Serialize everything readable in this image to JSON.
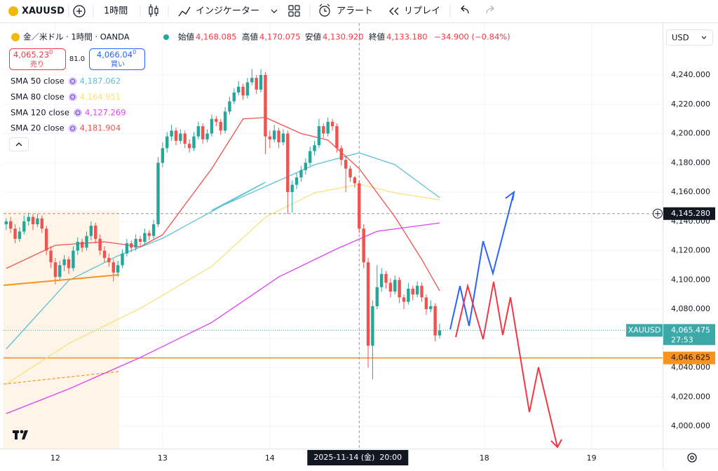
{
  "toolbar": {
    "symbol": "XAUUSD",
    "interval": "1時間",
    "indicators": "インジケーター",
    "alert": "アラート",
    "replay": "リプレイ"
  },
  "chart_data": {
    "type": "candlestick",
    "title": "金／米ドル · 1時間 · OANDA",
    "currency": "USD",
    "ohlc_legend": [
      {
        "label": "始値",
        "value": "4,168.085"
      },
      {
        "label": "高値",
        "value": "4,170.075"
      },
      {
        "label": "安値",
        "value": "4,130.920"
      },
      {
        "label": "終値",
        "value": "4,133.180"
      }
    ],
    "change": "−34.900 (−0.84%)",
    "quote": {
      "sell": "4,065.23",
      "sell_sup": "0",
      "sell_label": "売り",
      "spread": "81.0",
      "buy": "4,066.04",
      "buy_sup": "0",
      "buy_label": "買い"
    },
    "up_color": "#26a69a",
    "down_color": "#ef5350",
    "candles": {
      "x": [
        -11,
        -10,
        -9,
        -8,
        -7,
        -6,
        -5,
        -4,
        -3,
        -2,
        -1,
        0,
        1,
        2,
        3,
        4,
        5,
        6,
        7,
        8,
        9,
        10,
        11,
        12,
        13,
        14,
        15,
        16,
        17,
        18,
        19,
        20,
        21,
        22,
        23,
        24,
        25,
        26,
        27,
        28,
        29,
        30,
        31,
        32,
        33,
        34,
        35,
        36,
        37,
        38,
        39,
        40,
        41,
        42,
        43,
        44,
        45,
        46,
        47,
        48,
        49,
        50,
        51,
        52,
        53,
        54,
        55,
        56,
        57,
        58,
        59,
        60,
        61,
        62,
        63,
        64,
        65,
        66,
        67,
        68,
        69,
        70,
        71,
        72,
        73,
        74,
        75,
        76,
        77,
        78,
        79,
        80,
        81,
        82,
        83,
        84,
        85,
        86
      ],
      "ohlc": [
        [
          4138,
          4142,
          4134,
          4140
        ],
        [
          4140,
          4143,
          4132,
          4135
        ],
        [
          4135,
          4138,
          4125,
          4128
        ],
        [
          4128,
          4136,
          4126,
          4133
        ],
        [
          4133,
          4144,
          4131,
          4140
        ],
        [
          4140,
          4146,
          4137,
          4143
        ],
        [
          4143,
          4145,
          4134,
          4138
        ],
        [
          4138,
          4145,
          4136,
          4142
        ],
        [
          4142,
          4144,
          4132,
          4135
        ],
        [
          4135,
          4137,
          4117,
          4120
        ],
        [
          4120,
          4123,
          4108,
          4112
        ],
        [
          4112,
          4115,
          4097,
          4102
        ],
        [
          4102,
          4113,
          4100,
          4110
        ],
        [
          4110,
          4117,
          4106,
          4114
        ],
        [
          4114,
          4116,
          4104,
          4108
        ],
        [
          4108,
          4123,
          4106,
          4120
        ],
        [
          4120,
          4129,
          4117,
          4126
        ],
        [
          4126,
          4128,
          4119,
          4122
        ],
        [
          4122,
          4133,
          4120,
          4130
        ],
        [
          4130,
          4140,
          4127,
          4137
        ],
        [
          4137,
          4139,
          4125,
          4128
        ],
        [
          4128,
          4131,
          4117,
          4120
        ],
        [
          4120,
          4123,
          4112,
          4115
        ],
        [
          4115,
          4118,
          4109,
          4112
        ],
        [
          4112,
          4114,
          4099,
          4105
        ],
        [
          4105,
          4113,
          4102,
          4110
        ],
        [
          4110,
          4121,
          4108,
          4118
        ],
        [
          4118,
          4128,
          4116,
          4125
        ],
        [
          4125,
          4127,
          4119,
          4122
        ],
        [
          4122,
          4131,
          4120,
          4128
        ],
        [
          4128,
          4130,
          4123,
          4126
        ],
        [
          4126,
          4135,
          4124,
          4132
        ],
        [
          4132,
          4134,
          4127,
          4130
        ],
        [
          4130,
          4141,
          4128,
          4138
        ],
        [
          4138,
          4184,
          4136,
          4180
        ],
        [
          4180,
          4194,
          4177,
          4190
        ],
        [
          4190,
          4201,
          4187,
          4198
        ],
        [
          4198,
          4206,
          4195,
          4202
        ],
        [
          4202,
          4204,
          4192,
          4195
        ],
        [
          4195,
          4203,
          4193,
          4200
        ],
        [
          4200,
          4202,
          4190,
          4193
        ],
        [
          4193,
          4196,
          4187,
          4190
        ],
        [
          4190,
          4201,
          4188,
          4198
        ],
        [
          4198,
          4208,
          4196,
          4205
        ],
        [
          4205,
          4207,
          4193,
          4196
        ],
        [
          4196,
          4203,
          4194,
          4200
        ],
        [
          4200,
          4213,
          4198,
          4210
        ],
        [
          4210,
          4212,
          4205,
          4208
        ],
        [
          4208,
          4210,
          4199,
          4202
        ],
        [
          4202,
          4218,
          4200,
          4215
        ],
        [
          4215,
          4225,
          4213,
          4222
        ],
        [
          4222,
          4231,
          4220,
          4228
        ],
        [
          4228,
          4236,
          4226,
          4232
        ],
        [
          4232,
          4234,
          4223,
          4226
        ],
        [
          4226,
          4238,
          4224,
          4235
        ],
        [
          4235,
          4244,
          4233,
          4238
        ],
        [
          4238,
          4240,
          4227,
          4230
        ],
        [
          4230,
          4244,
          4228,
          4240
        ],
        [
          4240,
          4242,
          4186,
          4198
        ],
        [
          4198,
          4202,
          4190,
          4196
        ],
        [
          4196,
          4206,
          4194,
          4202
        ],
        [
          4202,
          4204,
          4190,
          4194
        ],
        [
          4194,
          4203,
          4192,
          4200
        ],
        [
          4200,
          4202,
          4145,
          4160
        ],
        [
          4160,
          4168,
          4146,
          4165
        ],
        [
          4165,
          4173,
          4162,
          4170
        ],
        [
          4170,
          4178,
          4167,
          4175
        ],
        [
          4175,
          4183,
          4172,
          4180
        ],
        [
          4180,
          4191,
          4178,
          4188
        ],
        [
          4188,
          4195,
          4185,
          4192
        ],
        [
          4192,
          4210,
          4190,
          4205
        ],
        [
          4205,
          4207,
          4197,
          4200
        ],
        [
          4200,
          4211,
          4198,
          4208
        ],
        [
          4208,
          4210,
          4202,
          4205
        ],
        [
          4205,
          4207,
          4187,
          4190
        ],
        [
          4190,
          4192,
          4178,
          4182
        ],
        [
          4182,
          4185,
          4160,
          4176
        ],
        [
          4176,
          4178,
          4167,
          4170
        ],
        [
          4170,
          4171,
          4163,
          4166
        ],
        [
          4166,
          4168,
          4132,
          4135
        ],
        [
          4135,
          4138,
          4108,
          4112
        ],
        [
          4112,
          4115,
          4040,
          4055
        ],
        [
          4055,
          4086,
          4032,
          4082
        ],
        [
          4082,
          4110,
          4080,
          4095
        ],
        [
          4095,
          4108,
          4092,
          4104
        ],
        [
          4104,
          4106,
          4094,
          4098
        ],
        [
          4098,
          4101,
          4088,
          4092
        ],
        [
          4092,
          4103,
          4090,
          4100
        ],
        [
          4100,
          4102,
          4084,
          4088
        ],
        [
          4088,
          4090,
          4080,
          4085
        ],
        [
          4085,
          4098,
          4083,
          4094
        ],
        [
          4094,
          4096,
          4086,
          4090
        ],
        [
          4090,
          4099,
          4088,
          4096
        ],
        [
          4096,
          4098,
          4085,
          4088
        ],
        [
          4088,
          4090,
          4076,
          4080
        ],
        [
          4080,
          4086,
          4078,
          4082
        ],
        [
          4082,
          4084,
          4058,
          4062
        ],
        [
          4062,
          4070,
          4060,
          4065.475
        ]
      ]
    },
    "series": [
      {
        "name": "SMA 50 close",
        "legend_value": "4,187.062",
        "color": "#5ec1d6",
        "x": [
          -11,
          3,
          14,
          24,
          47,
          35,
          58,
          68,
          76,
          86
        ],
        "values": [
          4052.7,
          4099.6,
          4116.4,
          4128.4,
          4166.7,
          4147.5,
          4178.7,
          4186.8,
          4178.7,
          4156.2
        ]
      },
      {
        "name": "SMA 80 close",
        "legend_value": "4,164.951",
        "color": "#f7e27c",
        "x": [
          -11,
          3,
          19,
          35,
          47,
          58,
          68,
          76,
          86
        ],
        "values": [
          4028.7,
          4056.5,
          4080.5,
          4109.2,
          4142.8,
          4159.5,
          4165.3,
          4159.5,
          4154.7
        ]
      },
      {
        "name": "SMA 120 close",
        "legend_value": "4,127.269",
        "color": "#e040fb",
        "x": [
          -11,
          3,
          19,
          35,
          50,
          63,
          72,
          86
        ],
        "values": [
          4008.6,
          4025.4,
          4046.9,
          4070.9,
          4102,
          4121.2,
          4133.2,
          4138.9
        ]
      },
      {
        "name": "SMA 20 close",
        "legend_value": "4,181.904",
        "color": "#ef5350",
        "x": [
          -11,
          0,
          11,
          19,
          24,
          35,
          42,
          47,
          55,
          61,
          68,
          76,
          82,
          86
        ],
        "values": [
          4107.8,
          4123.6,
          4126,
          4122.6,
          4130.8,
          4176,
          4210,
          4211,
          4200,
          4195.5,
          4176,
          4143,
          4114,
          4092.5
        ]
      }
    ],
    "xlim": [
      -11.6,
      135.9
    ],
    "ylim": [
      3984.7,
      4272.1
    ],
    "xticks": [
      {
        "value": 0,
        "label": "12"
      },
      {
        "value": 24,
        "label": "13"
      },
      {
        "value": 48,
        "label": "14"
      },
      {
        "value": 96,
        "label": "18"
      },
      {
        "value": 120,
        "label": "19"
      }
    ],
    "yticks": [
      {
        "value": 4000,
        "label": "4,000.000"
      },
      {
        "value": 4020,
        "label": "4,020.000"
      },
      {
        "value": 4040,
        "label": "4,040.000"
      },
      {
        "value": 4060,
        "label": "4,060.000"
      },
      {
        "value": 4080,
        "label": "4,080.000"
      },
      {
        "value": 4100,
        "label": "4,100.000"
      },
      {
        "value": 4120,
        "label": "4,120.000"
      },
      {
        "value": 4140,
        "label": "4,140.000"
      },
      {
        "value": 4160,
        "label": "4,160.000"
      },
      {
        "value": 4180,
        "label": "4,180.000"
      },
      {
        "value": 4200,
        "label": "4,200.000"
      },
      {
        "value": 4220,
        "label": "4,220.000"
      },
      {
        "value": 4240,
        "label": "4,240.000"
      }
    ],
    "grid": true,
    "price_lines": [
      {
        "value": 4145.28,
        "label": "4,145.280",
        "color": "#131722",
        "style": "dashed"
      },
      {
        "value": 4065.475,
        "label": "4,065.475",
        "name": "XAUUSD",
        "countdown": "27:53",
        "color": "#3ca8a8",
        "style": "dotted"
      },
      {
        "value": 4046.625,
        "label": "4,046.625",
        "color": "#f7931e",
        "style": "solid"
      }
    ],
    "crosshair": {
      "x": 68,
      "label": "2025-11-14 (金)  20:00"
    }
  }
}
